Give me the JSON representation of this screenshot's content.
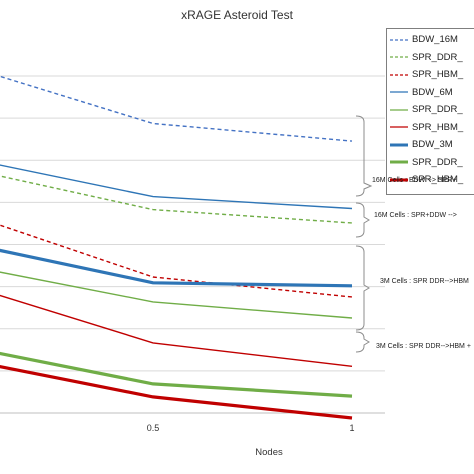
{
  "chart_data": {
    "type": "line",
    "title": "xRAGE Asteroid Test",
    "xlabel": "Nodes",
    "ylabel": "",
    "x": [
      0,
      0.5,
      1
    ],
    "x_ticks": [
      "0.5",
      "1"
    ],
    "xlim": [
      0.125,
      1.2
    ],
    "ylim": [
      0,
      100
    ],
    "grid": true,
    "legend_position": "top-right",
    "series": [
      {
        "name": "BDW_16M",
        "values": [
          91.6,
          75.6,
          71.0
        ],
        "color": "#4472c4",
        "style": "dashed",
        "weight": "thin"
      },
      {
        "name": "SPR_DDR_",
        "values": [
          64.5,
          53.1,
          49.6
        ],
        "color": "#70ad47",
        "style": "dashed",
        "weight": "thin"
      },
      {
        "name": "SPR_HBM_",
        "values": [
          53.1,
          35.5,
          30.3
        ],
        "color": "#c00000",
        "style": "dashed",
        "weight": "thin"
      },
      {
        "name": "BDW_6M",
        "values": [
          67.2,
          56.5,
          53.4
        ],
        "color": "#2e75b6",
        "style": "solid",
        "weight": "thin"
      },
      {
        "name": "SPR_DDR_",
        "values": [
          39.1,
          29.0,
          24.8
        ],
        "color": "#70ad47",
        "style": "solid",
        "weight": "thin"
      },
      {
        "name": "SPR_HBM_",
        "values": [
          34.4,
          18.3,
          12.2
        ],
        "color": "#c00000",
        "style": "solid",
        "weight": "thin"
      },
      {
        "name": "BDW_3M",
        "values": [
          45.0,
          34.0,
          33.2
        ],
        "color": "#2e75b6",
        "style": "solid",
        "weight": "thick"
      },
      {
        "name": "SPR_DDR_",
        "values": [
          17.9,
          7.6,
          4.4
        ],
        "color": "#70ad47",
        "style": "solid",
        "weight": "thick"
      },
      {
        "name": "SPR_HBM_",
        "values": [
          14.5,
          4.2,
          -1.3
        ],
        "color": "#c00000",
        "style": "solid",
        "weight": "thick"
      }
    ],
    "annotations": [
      "16M Cells : BDW --> SPR+",
      "16M Cells : SPR+DDW -->",
      "3M Cells : SPR DDR-->HBM",
      "3M Cells : SPR DDR-->HBM +"
    ]
  }
}
